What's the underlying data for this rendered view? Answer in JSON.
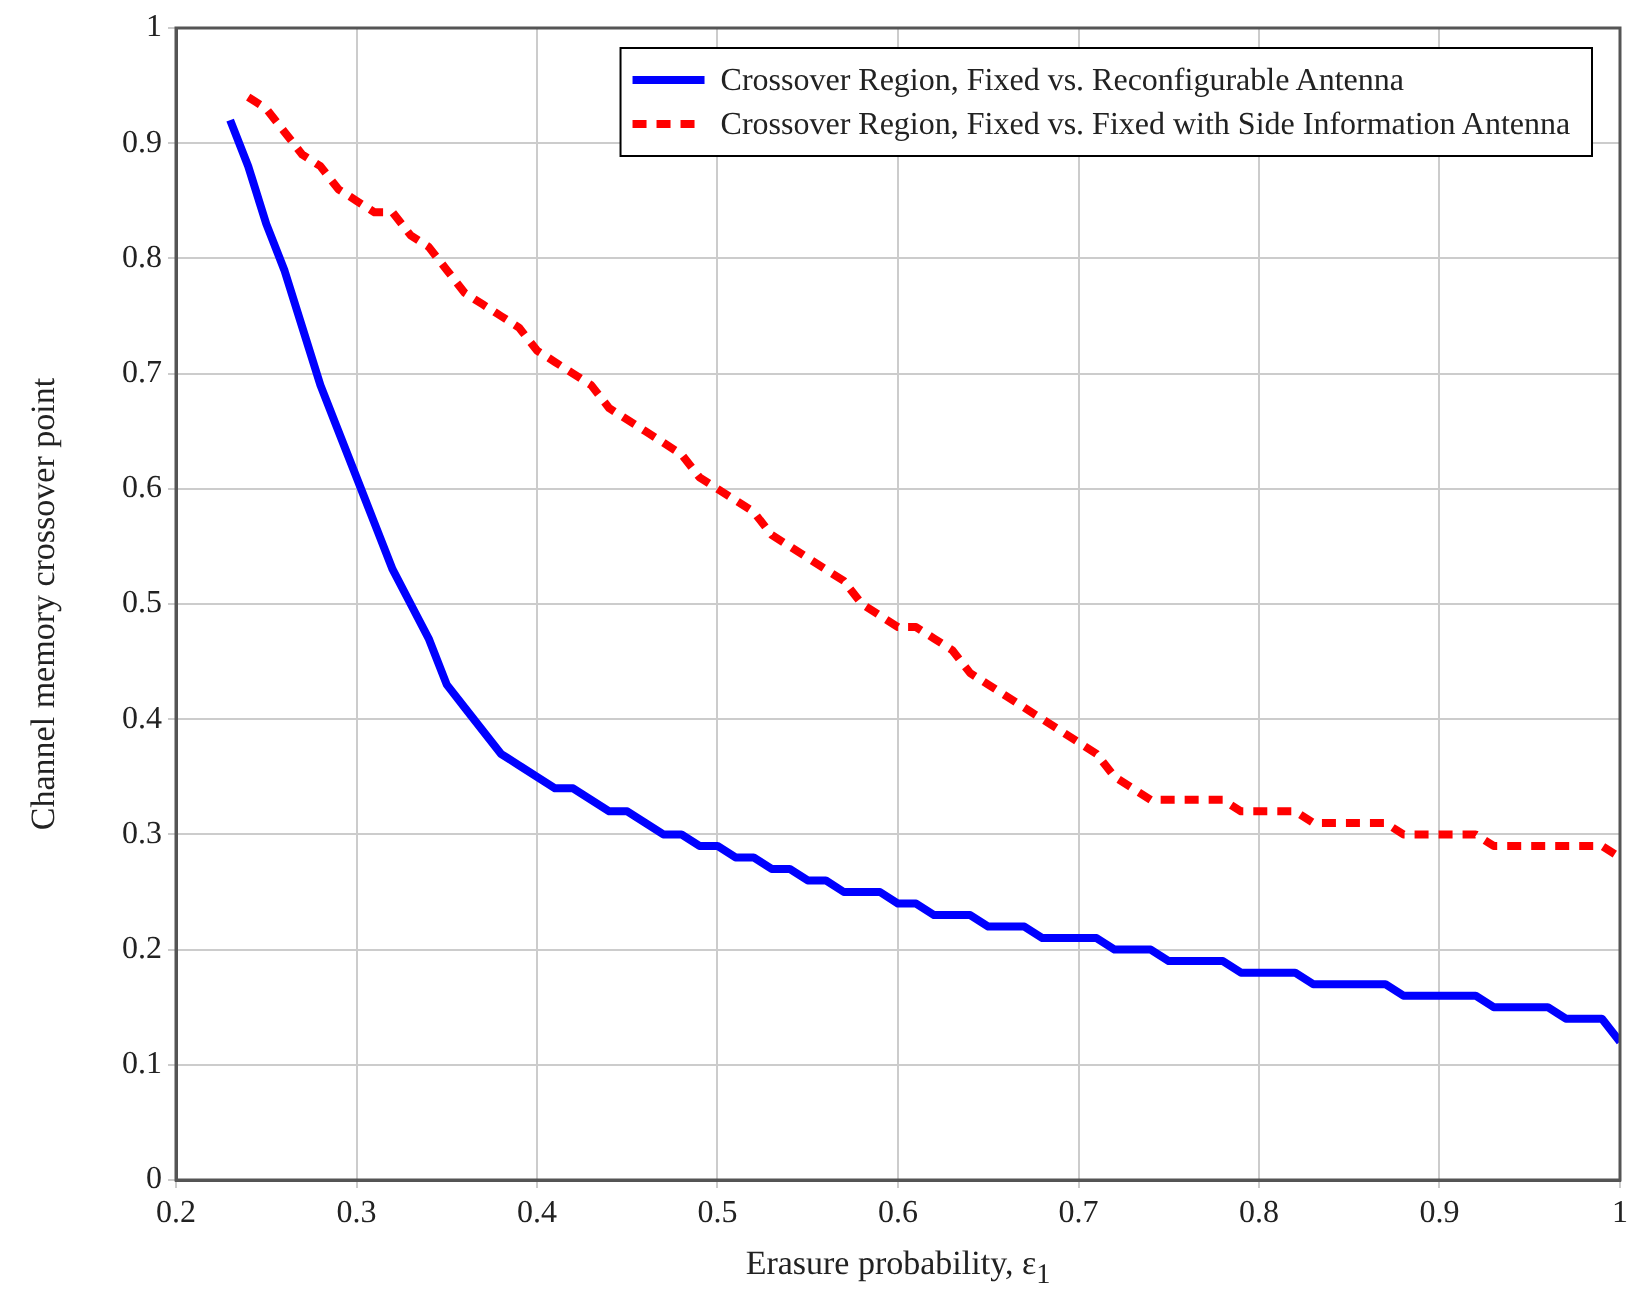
{
  "chart_data": {
    "type": "line",
    "xlabel": "Erasure probability, ε$_{1}$",
    "ylabel": "Channel memory crossover point",
    "xlim": [
      0.2,
      1
    ],
    "xticks": [
      0.2,
      0.3,
      0.4,
      0.5,
      0.6,
      0.7,
      0.8,
      0.9,
      1
    ],
    "ylim": [
      0,
      1
    ],
    "yticks": [
      0,
      0.1,
      0.2,
      0.3,
      0.4,
      0.5,
      0.6,
      0.7,
      0.8,
      0.9,
      1
    ],
    "grid": true,
    "legend": "top right",
    "marker": "none",
    "series": [
      {
        "name": "Crossover Region, Fixed vs. Reconfigurable Antenna",
        "color": "#0000ff",
        "line_style": "solid",
        "x": [
          0.23,
          0.24,
          0.25,
          0.26,
          0.27,
          0.28,
          0.29,
          0.3,
          0.31,
          0.32,
          0.33,
          0.34,
          0.35,
          0.36,
          0.37,
          0.38,
          0.39,
          0.4,
          0.41,
          0.42,
          0.43,
          0.44,
          0.45,
          0.46,
          0.47,
          0.48,
          0.49,
          0.5,
          0.51,
          0.52,
          0.53,
          0.54,
          0.55,
          0.56,
          0.57,
          0.58,
          0.59,
          0.6,
          0.61,
          0.62,
          0.63,
          0.64,
          0.65,
          0.66,
          0.67,
          0.68,
          0.69,
          0.7,
          0.71,
          0.72,
          0.73,
          0.74,
          0.75,
          0.76,
          0.77,
          0.78,
          0.79,
          0.8,
          0.81,
          0.82,
          0.83,
          0.84,
          0.85,
          0.86,
          0.87,
          0.88,
          0.89,
          0.9,
          0.91,
          0.92,
          0.93,
          0.94,
          0.95,
          0.96,
          0.97,
          0.98,
          0.99,
          1
        ],
        "values": [
          0.92,
          0.88,
          0.83,
          0.79,
          0.74,
          0.69,
          0.65,
          0.61,
          0.57,
          0.53,
          0.5,
          0.47,
          0.43,
          0.41,
          0.39,
          0.37,
          0.36,
          0.35,
          0.34,
          0.34,
          0.33,
          0.32,
          0.32,
          0.31,
          0.3,
          0.3,
          0.29,
          0.29,
          0.28,
          0.28,
          0.27,
          0.27,
          0.26,
          0.26,
          0.25,
          0.25,
          0.25,
          0.24,
          0.24,
          0.23,
          0.23,
          0.23,
          0.22,
          0.22,
          0.22,
          0.21,
          0.21,
          0.21,
          0.21,
          0.2,
          0.2,
          0.2,
          0.19,
          0.19,
          0.19,
          0.19,
          0.18,
          0.18,
          0.18,
          0.18,
          0.17,
          0.17,
          0.17,
          0.17,
          0.17,
          0.16,
          0.16,
          0.16,
          0.16,
          0.16,
          0.15,
          0.15,
          0.15,
          0.15,
          0.14,
          0.14,
          0.14,
          0.12
        ]
      },
      {
        "name": "Crossover Region, Fixed vs. Fixed with Side Information Antenna",
        "color": "#ff0000",
        "line_style": "dashed",
        "x": [
          0.24,
          0.25,
          0.26,
          0.27,
          0.28,
          0.29,
          0.3,
          0.31,
          0.32,
          0.33,
          0.34,
          0.35,
          0.36,
          0.37,
          0.38,
          0.39,
          0.4,
          0.41,
          0.42,
          0.43,
          0.44,
          0.45,
          0.46,
          0.47,
          0.48,
          0.49,
          0.5,
          0.51,
          0.52,
          0.53,
          0.54,
          0.55,
          0.56,
          0.57,
          0.58,
          0.59,
          0.6,
          0.61,
          0.62,
          0.63,
          0.64,
          0.65,
          0.66,
          0.67,
          0.68,
          0.69,
          0.7,
          0.71,
          0.72,
          0.73,
          0.74,
          0.75,
          0.76,
          0.77,
          0.78,
          0.79,
          0.8,
          0.81,
          0.82,
          0.83,
          0.84,
          0.85,
          0.86,
          0.87,
          0.88,
          0.89,
          0.9,
          0.91,
          0.92,
          0.93,
          0.94,
          0.95,
          0.96,
          0.97,
          0.98,
          0.99,
          1
        ],
        "values": [
          0.94,
          0.93,
          0.91,
          0.89,
          0.88,
          0.86,
          0.85,
          0.84,
          0.84,
          0.82,
          0.81,
          0.79,
          0.77,
          0.76,
          0.75,
          0.74,
          0.72,
          0.71,
          0.7,
          0.69,
          0.67,
          0.66,
          0.65,
          0.64,
          0.63,
          0.61,
          0.6,
          0.59,
          0.58,
          0.56,
          0.55,
          0.54,
          0.53,
          0.52,
          0.5,
          0.49,
          0.48,
          0.48,
          0.47,
          0.46,
          0.44,
          0.43,
          0.42,
          0.41,
          0.4,
          0.39,
          0.38,
          0.37,
          0.35,
          0.34,
          0.33,
          0.33,
          0.33,
          0.33,
          0.33,
          0.32,
          0.32,
          0.32,
          0.32,
          0.31,
          0.31,
          0.31,
          0.31,
          0.31,
          0.3,
          0.3,
          0.3,
          0.3,
          0.3,
          0.29,
          0.29,
          0.29,
          0.29,
          0.29,
          0.29,
          0.29,
          0.28
        ]
      }
    ]
  }
}
